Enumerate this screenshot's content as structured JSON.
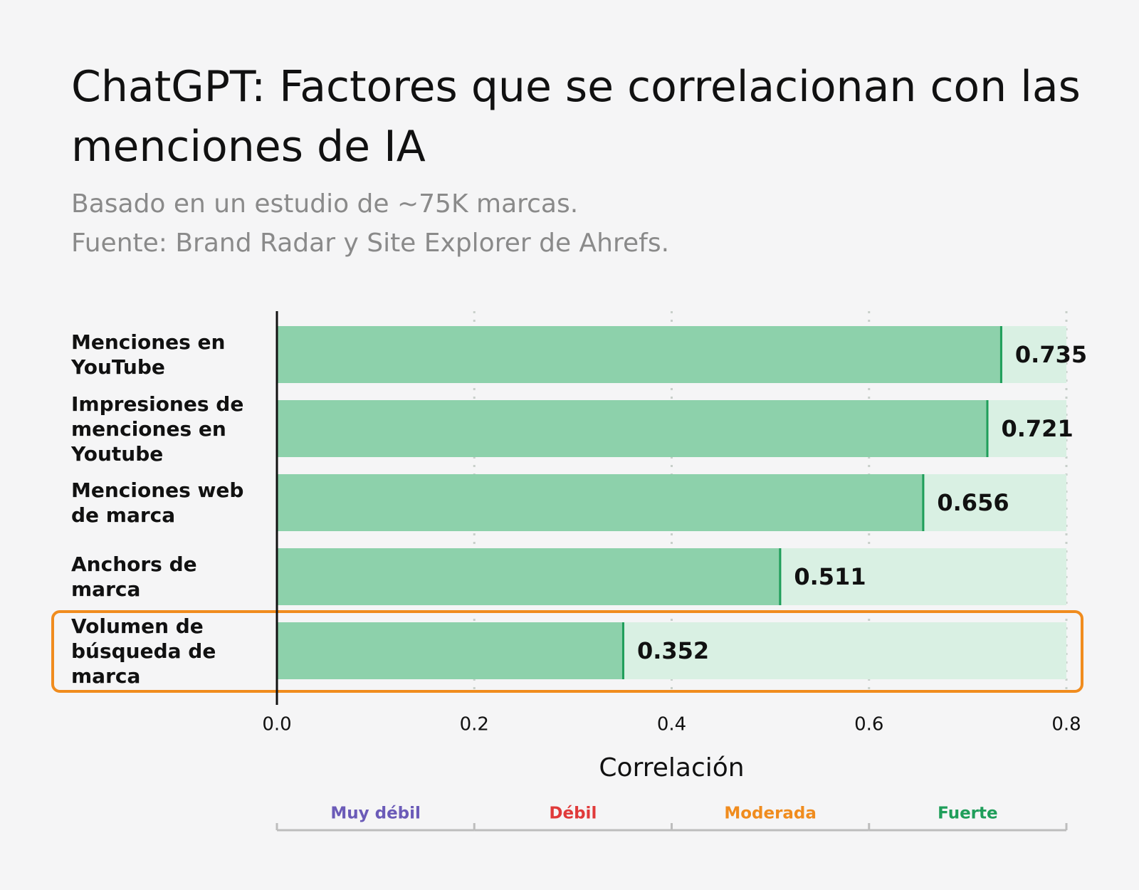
{
  "chart_data": {
    "type": "bar",
    "orientation": "horizontal",
    "title": "ChatGPT: Factores que se correlacionan con las menciones de IA",
    "subtitle": [
      "Basado en un estudio de ~75K marcas.",
      "Fuente: Brand Radar y Site Explorer de Ahrefs."
    ],
    "categories": [
      "Menciones en YouTube",
      "Impresiones de menciones en Youtube",
      "Menciones web de marca",
      "Anchors de marca",
      "Volumen de búsqueda de marca"
    ],
    "values": [
      0.735,
      0.721,
      0.656,
      0.511,
      0.352
    ],
    "color": "#8dd1ab",
    "track_color": "#d9f0e3",
    "edge_color": "#1f9e5a",
    "xlim": [
      0,
      0.8
    ],
    "xticks": [
      {
        "value": 0,
        "label": "0.0"
      },
      0.2,
      0.4,
      0.6,
      0.8
    ],
    "xlabel": "Correlación",
    "grid": true,
    "bands": [
      {
        "label": "Muy débil",
        "color": "#6b5bb8",
        "from": 0,
        "to": 0.2
      },
      {
        "label": "Débil",
        "color": "#e03a3a",
        "from": 0.2,
        "to": 0.4
      },
      {
        "label": "Moderada",
        "color": "#f08c1e",
        "from": 0.4,
        "to": 0.6
      },
      {
        "label": "Fuerte",
        "color": "#1f9e5a",
        "from": 0.6,
        "to": 0.8
      }
    ],
    "highlight": {
      "category": "Volumen de búsqueda de marca",
      "color": "#f08c1e"
    }
  }
}
